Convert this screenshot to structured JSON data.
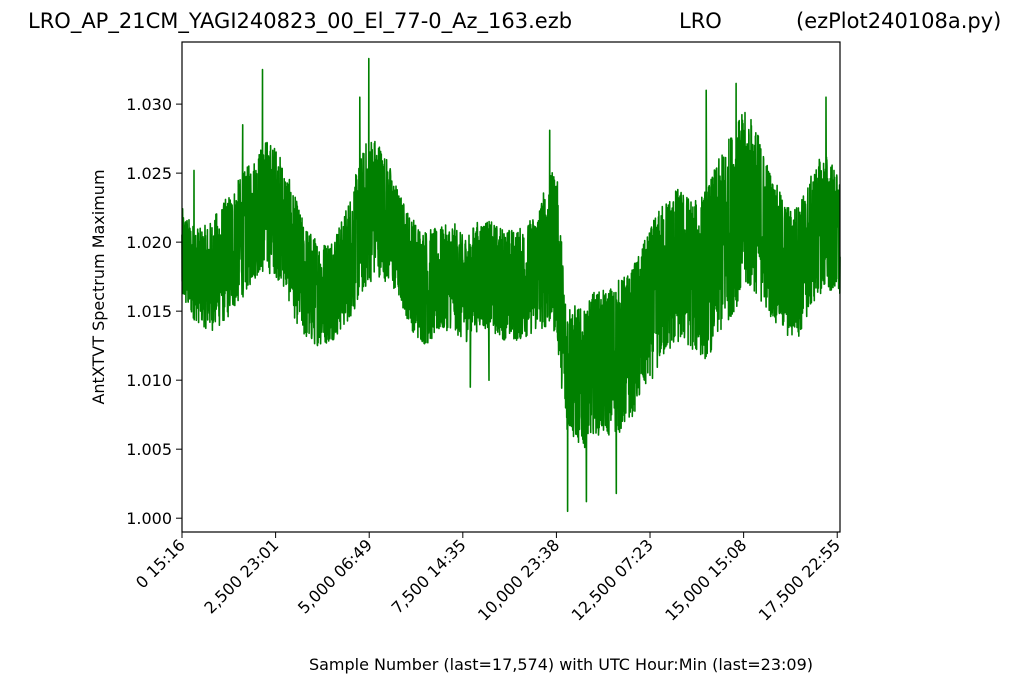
{
  "title": {
    "left": "LRO_AP_21CM_YAGI240823_00_El_77-0_Az_163.ezb",
    "middle": "LRO",
    "right": "(ezPlot240108a.py)"
  },
  "chart_data": {
    "type": "line",
    "xlabel": "Sample Number (last=17,574) with UTC Hour:Min (last=23:09)",
    "ylabel": "AntXTVT Spectrum Maximum",
    "xlim": [
      0,
      17574
    ],
    "ylim": [
      0.999,
      1.0345
    ],
    "x_ticks": [
      {
        "value": 0,
        "label": "0  15:16"
      },
      {
        "value": 2500,
        "label": "2,500  23:01"
      },
      {
        "value": 5000,
        "label": "5,000  06:49"
      },
      {
        "value": 7500,
        "label": "7,500  14:35"
      },
      {
        "value": 10000,
        "label": "10,000  23:38"
      },
      {
        "value": 12500,
        "label": "12,500  07:23"
      },
      {
        "value": 15000,
        "label": "15,000  15:08"
      },
      {
        "value": 17500,
        "label": "17,500  22:55"
      }
    ],
    "y_ticks": [
      {
        "value": 1.0,
        "label": "1.000"
      },
      {
        "value": 1.005,
        "label": "1.005"
      },
      {
        "value": 1.01,
        "label": "1.010"
      },
      {
        "value": 1.015,
        "label": "1.015"
      },
      {
        "value": 1.02,
        "label": "1.020"
      },
      {
        "value": 1.025,
        "label": "1.025"
      },
      {
        "value": 1.03,
        "label": "1.030"
      }
    ],
    "series": [
      {
        "color": "#008000",
        "x": [
          0,
          250,
          500,
          750,
          1000,
          1250,
          1500,
          1750,
          2000,
          2250,
          2500,
          2750,
          3000,
          3250,
          3500,
          3750,
          4000,
          4250,
          4500,
          4750,
          5000,
          5250,
          5500,
          5750,
          6000,
          6250,
          6500,
          6750,
          7000,
          7250,
          7500,
          7750,
          8000,
          8250,
          8500,
          8750,
          9000,
          9250,
          9500,
          9750,
          10000,
          10250,
          10500,
          10750,
          11000,
          11250,
          11500,
          11750,
          12000,
          12250,
          12500,
          12750,
          13000,
          13250,
          13500,
          13750,
          14000,
          14250,
          14500,
          14750,
          15000,
          15250,
          15500,
          15750,
          16000,
          16250,
          16500,
          16750,
          17000,
          17250,
          17574
        ],
        "low": [
          1.0155,
          1.0145,
          1.014,
          1.0135,
          1.0138,
          1.0145,
          1.0155,
          1.0165,
          1.0175,
          1.0178,
          1.0175,
          1.0165,
          1.0145,
          1.013,
          1.0125,
          1.0125,
          1.0128,
          1.0135,
          1.0145,
          1.0158,
          1.017,
          1.0175,
          1.017,
          1.016,
          1.0145,
          1.013,
          1.0125,
          1.013,
          1.0135,
          1.0138,
          1.0125,
          1.0132,
          1.0138,
          1.0135,
          1.013,
          1.0128,
          1.0128,
          1.0132,
          1.0135,
          1.0138,
          1.0132,
          1.0065,
          1.0055,
          1.005,
          1.0062,
          1.0058,
          1.006,
          1.0062,
          1.0072,
          1.0085,
          1.0098,
          1.011,
          1.012,
          1.0125,
          1.0125,
          1.0118,
          1.0115,
          1.0125,
          1.0138,
          1.015,
          1.0162,
          1.0165,
          1.0155,
          1.0145,
          1.0135,
          1.0128,
          1.0132,
          1.0148,
          1.0162,
          1.0165,
          1.0155
        ],
        "high": [
          1.0225,
          1.0215,
          1.021,
          1.0215,
          1.0225,
          1.0235,
          1.0245,
          1.0255,
          1.0265,
          1.0275,
          1.027,
          1.0255,
          1.0235,
          1.0215,
          1.0205,
          1.02,
          1.0205,
          1.0215,
          1.0235,
          1.026,
          1.028,
          1.0275,
          1.026,
          1.024,
          1.0225,
          1.0215,
          1.021,
          1.021,
          1.0212,
          1.0215,
          1.0205,
          1.0212,
          1.0218,
          1.0215,
          1.0212,
          1.021,
          1.021,
          1.0215,
          1.0225,
          1.0245,
          1.0255,
          1.016,
          1.0155,
          1.015,
          1.0165,
          1.0165,
          1.017,
          1.0175,
          1.018,
          1.0195,
          1.021,
          1.0225,
          1.0235,
          1.024,
          1.0235,
          1.023,
          1.024,
          1.0255,
          1.027,
          1.0285,
          1.0295,
          1.029,
          1.027,
          1.025,
          1.0235,
          1.0225,
          1.023,
          1.0245,
          1.026,
          1.0265,
          1.0245
        ],
        "spikes": [
          {
            "x": 2150,
            "y": 1.0325
          },
          {
            "x": 4990,
            "y": 1.0333
          },
          {
            "x": 4750,
            "y": 1.0305
          },
          {
            "x": 1620,
            "y": 1.0285
          },
          {
            "x": 9820,
            "y": 1.0281
          },
          {
            "x": 10300,
            "y": 1.0005
          },
          {
            "x": 10800,
            "y": 1.0012
          },
          {
            "x": 11600,
            "y": 1.0018
          },
          {
            "x": 14000,
            "y": 1.031
          },
          {
            "x": 14800,
            "y": 1.0315
          },
          {
            "x": 17200,
            "y": 1.0305
          },
          {
            "x": 7700,
            "y": 1.0095
          },
          {
            "x": 8200,
            "y": 1.01
          },
          {
            "x": 320,
            "y": 1.0252
          }
        ]
      }
    ]
  }
}
